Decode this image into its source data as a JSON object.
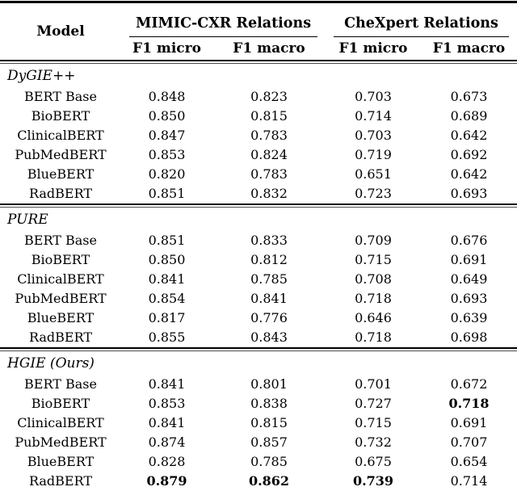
{
  "page": {
    "background_color": "#ffffff",
    "text_color": "#000000",
    "rule_color": "#000000"
  },
  "table": {
    "header": {
      "model": "Model",
      "groups": [
        {
          "label": "MIMIC-CXR Relations",
          "columns": [
            "F1 micro",
            "F1 macro"
          ]
        },
        {
          "label": "CheXpert Relations",
          "columns": [
            "F1 micro",
            "F1 macro"
          ]
        }
      ]
    },
    "sections": [
      {
        "name": "DyGIE++",
        "rows": [
          {
            "model": "BERT Base",
            "values": [
              "0.848",
              "0.823",
              "0.703",
              "0.673"
            ],
            "bold": []
          },
          {
            "model": "BioBERT",
            "values": [
              "0.850",
              "0.815",
              "0.714",
              "0.689"
            ],
            "bold": []
          },
          {
            "model": "ClinicalBERT",
            "values": [
              "0.847",
              "0.783",
              "0.703",
              "0.642"
            ],
            "bold": []
          },
          {
            "model": "PubMedBERT",
            "values": [
              "0.853",
              "0.824",
              "0.719",
              "0.692"
            ],
            "bold": []
          },
          {
            "model": "BlueBERT",
            "values": [
              "0.820",
              "0.783",
              "0.651",
              "0.642"
            ],
            "bold": []
          },
          {
            "model": "RadBERT",
            "values": [
              "0.851",
              "0.832",
              "0.723",
              "0.693"
            ],
            "bold": []
          }
        ]
      },
      {
        "name": "PURE",
        "rows": [
          {
            "model": "BERT Base",
            "values": [
              "0.851",
              "0.833",
              "0.709",
              "0.676"
            ],
            "bold": []
          },
          {
            "model": "BioBERT",
            "values": [
              "0.850",
              "0.812",
              "0.715",
              "0.691"
            ],
            "bold": []
          },
          {
            "model": "ClinicalBERT",
            "values": [
              "0.841",
              "0.785",
              "0.708",
              "0.649"
            ],
            "bold": []
          },
          {
            "model": "PubMedBERT",
            "values": [
              "0.854",
              "0.841",
              "0.718",
              "0.693"
            ],
            "bold": []
          },
          {
            "model": "BlueBERT",
            "values": [
              "0.817",
              "0.776",
              "0.646",
              "0.639"
            ],
            "bold": []
          },
          {
            "model": "RadBERT",
            "values": [
              "0.855",
              "0.843",
              "0.718",
              "0.698"
            ],
            "bold": []
          }
        ]
      },
      {
        "name": "HGIE (Ours)",
        "rows": [
          {
            "model": "BERT Base",
            "values": [
              "0.841",
              "0.801",
              "0.701",
              "0.672"
            ],
            "bold": []
          },
          {
            "model": "BioBERT",
            "values": [
              "0.853",
              "0.838",
              "0.727",
              "0.718"
            ],
            "bold": [
              3
            ]
          },
          {
            "model": "ClinicalBERT",
            "values": [
              "0.841",
              "0.815",
              "0.715",
              "0.691"
            ],
            "bold": []
          },
          {
            "model": "PubMedBERT",
            "values": [
              "0.874",
              "0.857",
              "0.732",
              "0.707"
            ],
            "bold": []
          },
          {
            "model": "BlueBERT",
            "values": [
              "0.828",
              "0.785",
              "0.675",
              "0.654"
            ],
            "bold": []
          },
          {
            "model": "RadBERT",
            "values": [
              "0.879",
              "0.862",
              "0.739",
              "0.714"
            ],
            "bold": [
              0,
              1,
              2
            ]
          }
        ]
      }
    ]
  }
}
